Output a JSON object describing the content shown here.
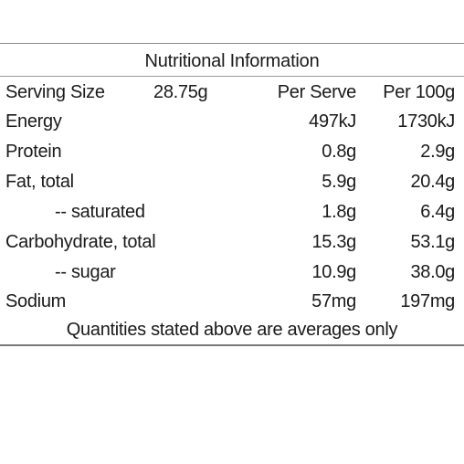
{
  "table": {
    "title": "Nutritional Information",
    "header": {
      "serving_size_label": "Serving Size",
      "serving_size_value": "28.75g",
      "per_serve_label": "Per Serve",
      "per_100g_label": "Per 100g"
    },
    "rows": [
      {
        "name": "Energy",
        "per_serve": "497kJ",
        "per_100g": "1730kJ"
      },
      {
        "name": "Protein",
        "per_serve": "0.8g",
        "per_100g": "2.9g"
      },
      {
        "name": "Fat, total",
        "per_serve": "5.9g",
        "per_100g": "20.4g"
      },
      {
        "name": "-- saturated",
        "per_serve": "1.8g",
        "per_100g": "6.4g"
      },
      {
        "name": "Carbohydrate, total",
        "per_serve": "15.3g",
        "per_100g": "53.1g"
      },
      {
        "name": "-- sugar",
        "per_serve": "10.9g",
        "per_100g": "38.0g"
      },
      {
        "name": "Sodium",
        "per_serve": "57mg",
        "per_100g": "197mg"
      }
    ],
    "footer": "Quantities stated above are averages only"
  }
}
